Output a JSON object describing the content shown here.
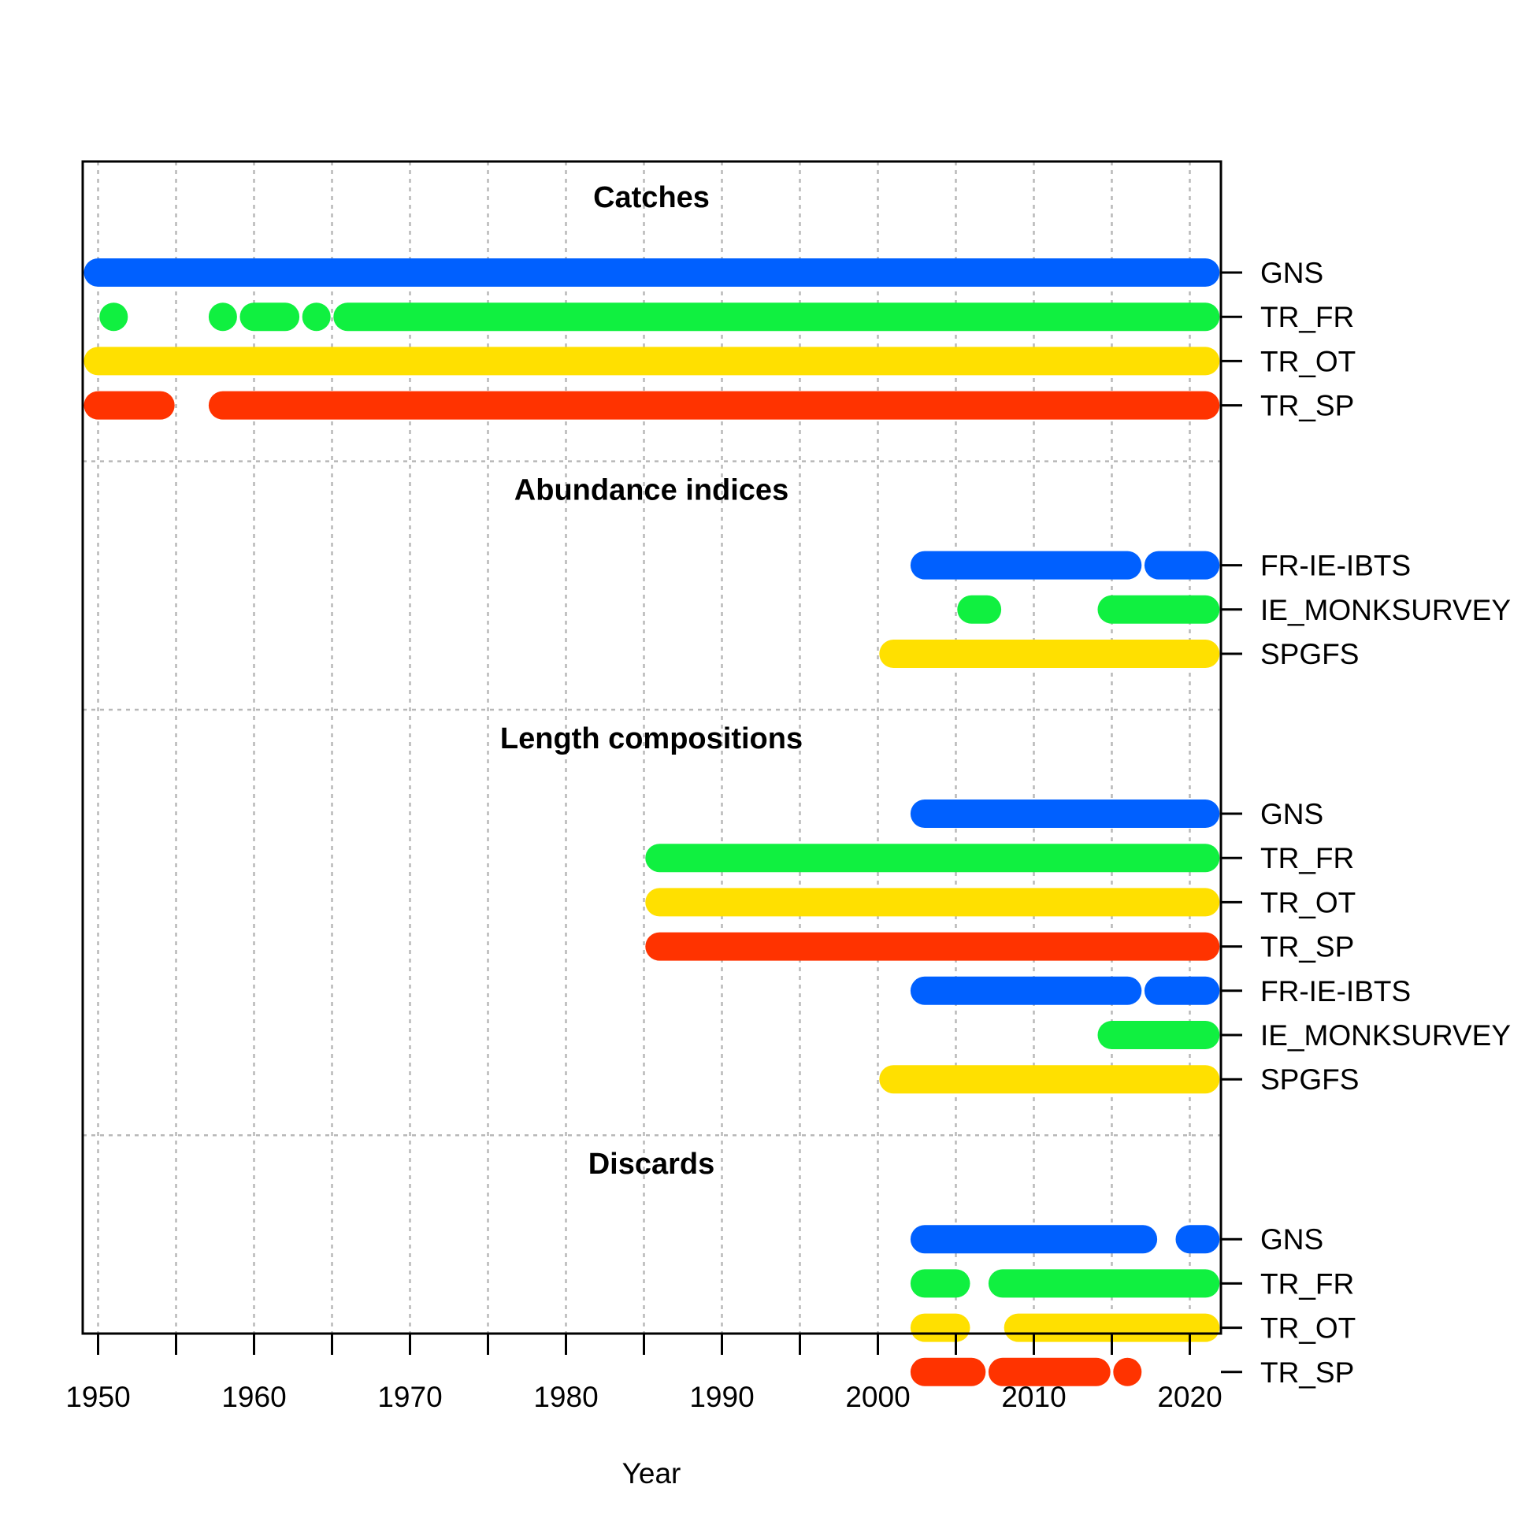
{
  "chart_data": {
    "type": "timeline",
    "xlabel": "Year",
    "xlim": [
      1949,
      2022
    ],
    "x_ticks_labeled": [
      1950,
      1960,
      1970,
      1980,
      1990,
      2000,
      2010,
      2020
    ],
    "x_ticks_minor": [
      1950,
      1955,
      1960,
      1965,
      1970,
      1975,
      1980,
      1985,
      1990,
      1995,
      2000,
      2005,
      2010,
      2015,
      2020
    ],
    "grid": "dotted",
    "colors": {
      "GNS": "#0060FF",
      "TR_FR": "#10F040",
      "TR_OT": "#FFE000",
      "TR_SP": "#FF3300",
      "FR-IE-IBTS": "#0060FF",
      "IE_MONKSURVEY": "#10F040",
      "SPGFS": "#FFE000"
    },
    "sections": [
      {
        "title": "Catches",
        "rows": [
          {
            "name": "GNS",
            "ranges": [
              [
                1950,
                2021
              ]
            ]
          },
          {
            "name": "TR_FR",
            "ranges": [
              [
                1951,
                1951
              ],
              [
                1958,
                1958
              ],
              [
                1960,
                1962
              ],
              [
                1964,
                1964
              ],
              [
                1966,
                2021
              ]
            ]
          },
          {
            "name": "TR_OT",
            "ranges": [
              [
                1950,
                2021
              ]
            ]
          },
          {
            "name": "TR_SP",
            "ranges": [
              [
                1950,
                1954
              ],
              [
                1958,
                2021
              ]
            ]
          }
        ]
      },
      {
        "title": "Abundance indices",
        "rows": [
          {
            "name": "FR-IE-IBTS",
            "ranges": [
              [
                2003,
                2016
              ],
              [
                2018,
                2021
              ]
            ]
          },
          {
            "name": "IE_MONKSURVEY",
            "ranges": [
              [
                2006,
                2007
              ],
              [
                2015,
                2021
              ]
            ]
          },
          {
            "name": "SPGFS",
            "ranges": [
              [
                2001,
                2021
              ]
            ]
          }
        ]
      },
      {
        "title": "Length compositions",
        "rows": [
          {
            "name": "GNS",
            "ranges": [
              [
                2003,
                2021
              ]
            ]
          },
          {
            "name": "TR_FR",
            "ranges": [
              [
                1986,
                2021
              ]
            ]
          },
          {
            "name": "TR_OT",
            "ranges": [
              [
                1986,
                2021
              ]
            ]
          },
          {
            "name": "TR_SP",
            "ranges": [
              [
                1986,
                2021
              ]
            ]
          },
          {
            "name": "FR-IE-IBTS",
            "ranges": [
              [
                2003,
                2016
              ],
              [
                2018,
                2021
              ]
            ]
          },
          {
            "name": "IE_MONKSURVEY",
            "ranges": [
              [
                2015,
                2021
              ]
            ]
          },
          {
            "name": "SPGFS",
            "ranges": [
              [
                2001,
                2021
              ]
            ]
          }
        ]
      },
      {
        "title": "Discards",
        "rows": [
          {
            "name": "GNS",
            "ranges": [
              [
                2003,
                2017
              ],
              [
                2020,
                2021
              ]
            ]
          },
          {
            "name": "TR_FR",
            "ranges": [
              [
                2003,
                2005
              ],
              [
                2008,
                2021
              ]
            ]
          },
          {
            "name": "TR_OT",
            "ranges": [
              [
                2003,
                2005
              ],
              [
                2009,
                2021
              ]
            ]
          },
          {
            "name": "TR_SP",
            "ranges": [
              [
                2003,
                2006
              ],
              [
                2008,
                2014
              ],
              [
                2016,
                2016
              ]
            ]
          }
        ]
      }
    ]
  }
}
